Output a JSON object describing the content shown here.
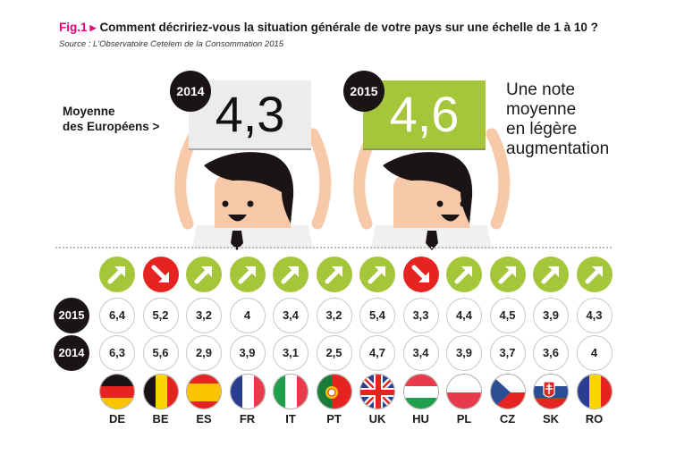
{
  "header": {
    "fig_label": "Fig.1",
    "question": "Comment décririez-vous la situation générale de votre pays sur une échelle de 1 à 10 ?",
    "source": "Source : L'Observatoire Cetelem de la Consommation 2015"
  },
  "average": {
    "label_line1": "Moyenne",
    "label_line2": "des Européens >",
    "year_2014": "2014",
    "value_2014": "4,3",
    "year_2015": "2015",
    "value_2015": "4,6",
    "note_lines": [
      "Une note",
      "moyenne",
      "en légère",
      "augmentation"
    ]
  },
  "table": {
    "row_labels": [
      "2015",
      "2014"
    ],
    "countries": [
      {
        "code": "DE",
        "v2015": "6,4",
        "v2014": "6,3",
        "trend": "up"
      },
      {
        "code": "BE",
        "v2015": "5,2",
        "v2014": "5,6",
        "trend": "down"
      },
      {
        "code": "ES",
        "v2015": "3,2",
        "v2014": "2,9",
        "trend": "up"
      },
      {
        "code": "FR",
        "v2015": "4",
        "v2014": "3,9",
        "trend": "up"
      },
      {
        "code": "IT",
        "v2015": "3,4",
        "v2014": "3,1",
        "trend": "up"
      },
      {
        "code": "PT",
        "v2015": "3,2",
        "v2014": "2,5",
        "trend": "up"
      },
      {
        "code": "UK",
        "v2015": "5,4",
        "v2014": "4,7",
        "trend": "up"
      },
      {
        "code": "HU",
        "v2015": "3,3",
        "v2014": "3,4",
        "trend": "down"
      },
      {
        "code": "PL",
        "v2015": "4,4",
        "v2014": "3,9",
        "trend": "up"
      },
      {
        "code": "CZ",
        "v2015": "4,5",
        "v2014": "3,7",
        "trend": "up"
      },
      {
        "code": "SK",
        "v2015": "3,9",
        "v2014": "3,6",
        "trend": "up"
      },
      {
        "code": "RO",
        "v2015": "4,3",
        "v2014": "4",
        "trend": "up"
      }
    ]
  },
  "colors": {
    "accent_pink": "#e6007e",
    "up_green": "#a5c63b",
    "down_red": "#e52421",
    "badge_black": "#1a1414"
  }
}
